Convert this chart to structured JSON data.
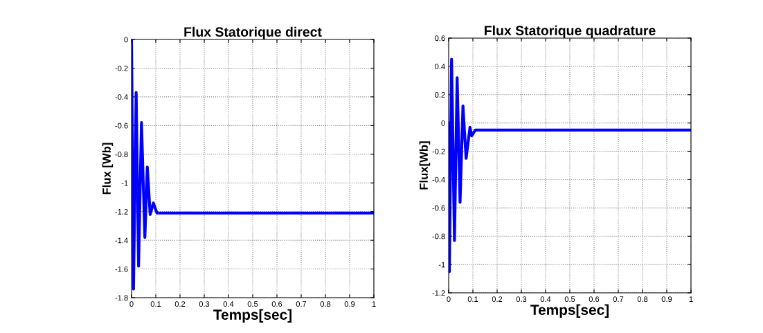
{
  "chart_data": [
    {
      "type": "line",
      "title": "Flux Statorique direct",
      "xlabel": "Temps[sec]",
      "ylabel": "Flux [Wb]",
      "grid": true,
      "legend": false,
      "xlim": [
        0,
        1
      ],
      "ylim": [
        -1.8,
        0
      ],
      "xticks": [
        0,
        0.1,
        0.2,
        0.3,
        0.4,
        0.5,
        0.6,
        0.7,
        0.8,
        0.9,
        1
      ],
      "yticks": [
        -1.8,
        -1.6,
        -1.4,
        -1.2,
        -1,
        -0.8,
        -0.6,
        -0.4,
        -0.2,
        0
      ],
      "series": [
        {
          "color": "#0000ff",
          "x": [
            0,
            0.008,
            0.019,
            0.029,
            0.041,
            0.055,
            0.065,
            0.077,
            0.09,
            0.105,
            0.2,
            0.4,
            0.6,
            0.8,
            1
          ],
          "values": [
            0,
            -1.74,
            -0.37,
            -1.58,
            -0.58,
            -1.38,
            -0.89,
            -1.22,
            -1.14,
            -1.21,
            -1.21,
            -1.21,
            -1.21,
            -1.21,
            -1.21
          ]
        }
      ]
    },
    {
      "type": "line",
      "title": "Flux Statorique quadrature",
      "xlabel": "Temps[sec]",
      "ylabel": "Flux[Wb]",
      "grid": true,
      "legend": false,
      "xlim": [
        0,
        1
      ],
      "ylim": [
        -1.2,
        0.6
      ],
      "xticks": [
        0,
        0.1,
        0.2,
        0.3,
        0.4,
        0.5,
        0.6,
        0.7,
        0.8,
        0.9,
        1
      ],
      "yticks": [
        -1.2,
        -1,
        -0.8,
        -0.6,
        -0.4,
        -0.2,
        0,
        0.2,
        0.4,
        0.6
      ],
      "series": [
        {
          "color": "#0000ff",
          "x": [
            0,
            0.003,
            0.012,
            0.024,
            0.035,
            0.047,
            0.059,
            0.072,
            0.088,
            0.095,
            0.11,
            0.3,
            0.5,
            0.7,
            1
          ],
          "values": [
            0,
            -1.05,
            0.45,
            -0.83,
            0.32,
            -0.56,
            0.12,
            -0.25,
            -0.03,
            -0.09,
            -0.05,
            -0.05,
            -0.05,
            -0.05,
            -0.05
          ]
        }
      ]
    }
  ]
}
